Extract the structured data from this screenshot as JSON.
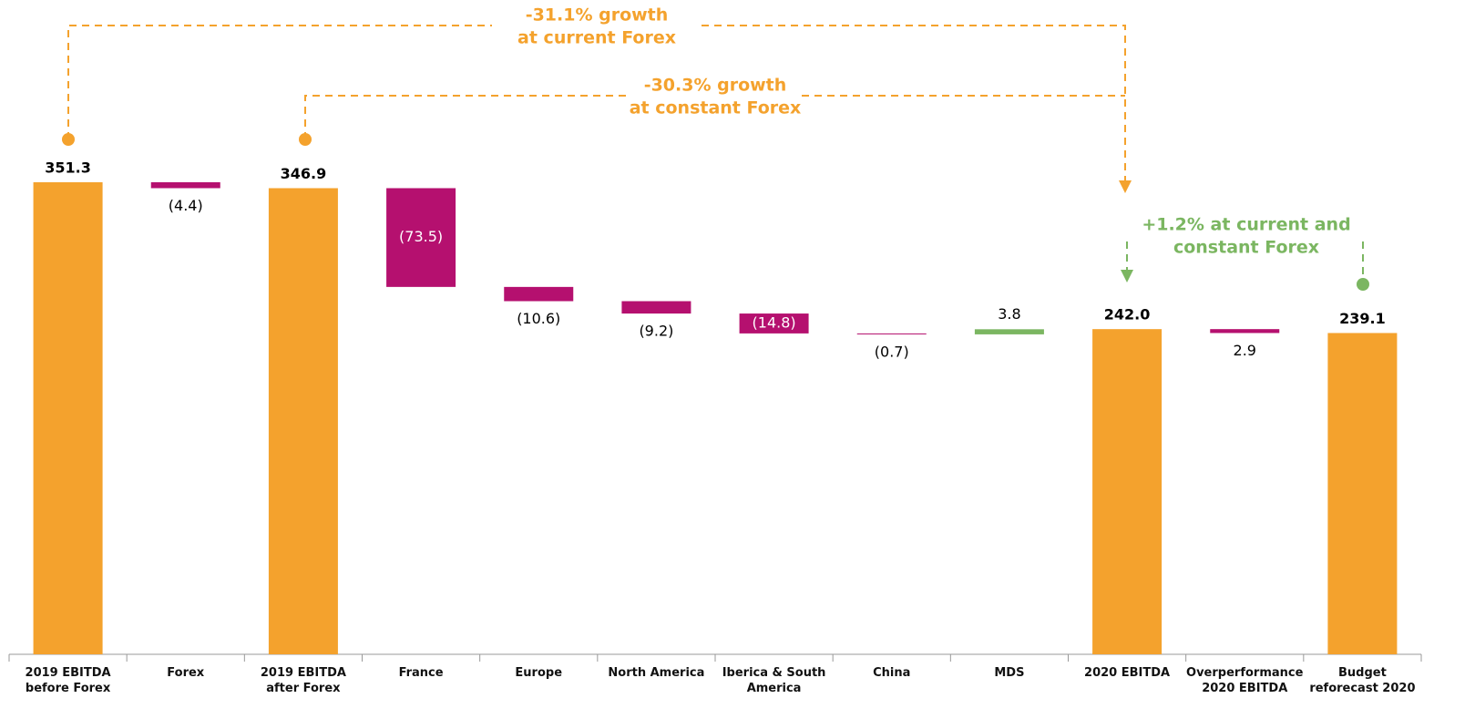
{
  "chart_data": {
    "type": "waterfall",
    "categories": [
      "2019 EBITDA before Forex",
      "Forex",
      "2019 EBITDA after Forex",
      "France",
      "Europe",
      "North America",
      "Iberica & South America",
      "China",
      "MDS",
      "2020 EBITDA",
      "Overperformance 2020 EBITDA",
      "Budget reforecast 2020"
    ],
    "measures": [
      "total",
      "relative",
      "total",
      "relative",
      "relative",
      "relative",
      "relative",
      "relative",
      "relative",
      "total",
      "relative",
      "total"
    ],
    "values": [
      351.3,
      -4.4,
      346.9,
      -73.5,
      -10.6,
      -9.2,
      -14.8,
      -0.7,
      3.8,
      242.0,
      -2.9,
      239.1
    ],
    "value_labels": [
      "351.3",
      "(4.4)",
      "346.9",
      "(73.5)",
      "(10.6)",
      "(9.2)",
      "(14.8)",
      "(0.7)",
      "3.8",
      "242.0",
      "2.9",
      "239.1"
    ],
    "colors": {
      "total": "#F4A22D",
      "decrease": "#B5106F",
      "increase": "#7BB661"
    },
    "ylim": [
      0,
      380
    ],
    "annotations": [
      {
        "lines": [
          "-31.1% growth",
          "at current Forex"
        ],
        "color": "#F4A22D"
      },
      {
        "lines": [
          "-30.3% growth",
          "at constant Forex"
        ],
        "color": "#F4A22D"
      },
      {
        "lines": [
          "+1.2% at current and",
          "constant Forex"
        ],
        "color": "#7BB661"
      }
    ]
  }
}
